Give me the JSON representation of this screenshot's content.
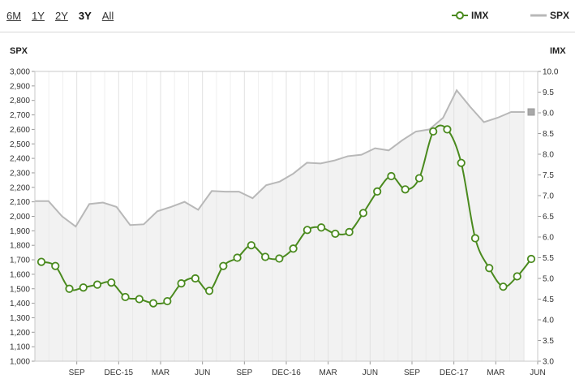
{
  "range_selector": {
    "buttons": [
      {
        "label": "6M",
        "active": false
      },
      {
        "label": "1Y",
        "active": false
      },
      {
        "label": "2Y",
        "active": false
      },
      {
        "label": "3Y",
        "active": true
      },
      {
        "label": "All",
        "active": false
      }
    ]
  },
  "legend": {
    "imx": {
      "label": "IMX",
      "color": "#4a8a1e"
    },
    "spx": {
      "label": "SPX",
      "color": "#b8b8b8"
    }
  },
  "chart_data": {
    "type": "line",
    "title": "",
    "x": {
      "tick_labels": [
        "SEP",
        "DEC-15",
        "MAR",
        "JUN",
        "SEP",
        "DEC-16",
        "MAR",
        "JUN",
        "SEP",
        "DEC-17",
        "MAR",
        "JUN"
      ],
      "range": [
        "2015-06",
        "2018-06"
      ]
    },
    "y_left": {
      "label": "SPX",
      "ylim": [
        1000,
        3000
      ],
      "ticks": [
        "1,000",
        "1,100",
        "1,200",
        "1,300",
        "1,400",
        "1,500",
        "1,600",
        "1,700",
        "1,800",
        "1,900",
        "2,000",
        "2,100",
        "2,200",
        "2,300",
        "2,400",
        "2,500",
        "2,600",
        "2,700",
        "2,800",
        "2,900",
        "3,000"
      ]
    },
    "y_right": {
      "label": "IMX",
      "ylim": [
        3.0,
        10.0
      ],
      "ticks": [
        "3.0",
        "3.5",
        "4.0",
        "4.5",
        "5.0",
        "5.5",
        "6.0",
        "6.5",
        "7.0",
        "7.5",
        "8.0",
        "8.5",
        "9.0",
        "9.5",
        "10.0"
      ]
    },
    "grid": true,
    "series": [
      {
        "name": "SPX",
        "type": "area",
        "axis": "left",
        "color": "#b8b8b8",
        "values": [
          2105,
          2105,
          2000,
          1930,
          2085,
          2095,
          2065,
          1940,
          1945,
          2035,
          2065,
          2100,
          2045,
          2175,
          2170,
          2170,
          2125,
          2215,
          2240,
          2295,
          2370,
          2365,
          2385,
          2415,
          2425,
          2470,
          2455,
          2525,
          2585,
          2600,
          2680,
          2870,
          2755,
          2650,
          2680,
          2720,
          2720
        ]
      },
      {
        "name": "IMX",
        "type": "line",
        "axis": "right",
        "color": "#4a8a1e",
        "values": [
          5.4,
          5.3,
          4.75,
          4.78,
          4.85,
          4.9,
          4.55,
          4.5,
          4.4,
          4.45,
          4.88,
          5.0,
          4.7,
          5.3,
          5.5,
          5.8,
          5.52,
          5.48,
          5.72,
          6.17,
          6.23,
          6.08,
          6.12,
          6.58,
          7.1,
          7.47,
          7.15,
          7.42,
          8.55,
          8.6,
          7.79,
          5.97,
          5.25,
          4.8,
          5.05,
          5.47
        ]
      }
    ]
  }
}
